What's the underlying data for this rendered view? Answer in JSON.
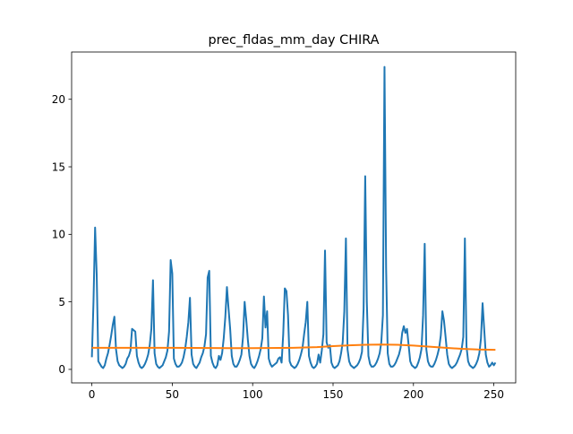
{
  "chart_data": {
    "type": "line",
    "title": "prec_fldas_mm_day CHIRA",
    "xlabel": "",
    "ylabel": "",
    "xlim": [
      -12.6,
      263.6
    ],
    "ylim": [
      -1.0,
      23.5
    ],
    "xticks": [
      0,
      50,
      100,
      150,
      200,
      250
    ],
    "yticks": [
      0,
      5,
      10,
      15,
      20
    ],
    "grid": false,
    "legend": "none",
    "series": [
      {
        "color": "#1f77b4",
        "x": [
          0,
          1,
          2,
          3,
          4,
          5,
          6,
          7,
          8,
          9,
          10,
          11,
          12,
          13,
          14,
          15,
          16,
          17,
          18,
          19,
          20,
          21,
          22,
          23,
          24,
          25,
          26,
          27,
          28,
          29,
          30,
          31,
          32,
          33,
          34,
          35,
          36,
          37,
          38,
          39,
          40,
          41,
          42,
          43,
          44,
          45,
          46,
          47,
          48,
          49,
          50,
          51,
          52,
          53,
          54,
          55,
          56,
          57,
          58,
          59,
          60,
          61,
          62,
          63,
          64,
          65,
          66,
          67,
          68,
          69,
          70,
          71,
          72,
          73,
          74,
          75,
          76,
          77,
          78,
          79,
          80,
          81,
          82,
          83,
          84,
          85,
          86,
          87,
          88,
          89,
          90,
          91,
          92,
          93,
          94,
          95,
          96,
          97,
          98,
          99,
          100,
          101,
          102,
          103,
          104,
          105,
          106,
          107,
          108,
          109,
          110,
          111,
          112,
          113,
          114,
          115,
          116,
          117,
          118,
          119,
          120,
          121,
          122,
          123,
          124,
          125,
          126,
          127,
          128,
          129,
          130,
          131,
          132,
          133,
          134,
          135,
          136,
          137,
          138,
          139,
          140,
          141,
          142,
          143,
          144,
          145,
          146,
          147,
          148,
          149,
          150,
          151,
          152,
          153,
          154,
          155,
          156,
          157,
          158,
          159,
          160,
          161,
          162,
          163,
          164,
          165,
          166,
          167,
          168,
          169,
          170,
          171,
          172,
          173,
          174,
          175,
          176,
          177,
          178,
          179,
          180,
          181,
          182,
          183,
          184,
          185,
          186,
          187,
          188,
          189,
          190,
          191,
          192,
          193,
          194,
          195,
          196,
          197,
          198,
          199,
          200,
          201,
          202,
          203,
          204,
          205,
          206,
          207,
          208,
          209,
          210,
          211,
          212,
          213,
          214,
          215,
          216,
          217,
          218,
          219,
          220,
          221,
          222,
          223,
          224,
          225,
          226,
          227,
          228,
          229,
          230,
          231,
          232,
          233,
          234,
          235,
          236,
          237,
          238,
          239,
          240,
          241,
          242,
          243,
          244,
          245,
          246,
          247,
          248,
          249,
          250,
          251
        ],
        "y": [
          0.9,
          5.0,
          10.5,
          7.0,
          0.6,
          0.4,
          0.2,
          0.1,
          0.3,
          0.8,
          1.2,
          1.8,
          2.5,
          3.3,
          3.9,
          1.5,
          0.6,
          0.3,
          0.2,
          0.1,
          0.2,
          0.4,
          0.8,
          1.0,
          1.4,
          3.0,
          2.9,
          2.8,
          1.0,
          0.5,
          0.2,
          0.1,
          0.2,
          0.4,
          0.7,
          1.1,
          1.8,
          3.0,
          6.6,
          1.2,
          0.4,
          0.2,
          0.1,
          0.2,
          0.3,
          0.6,
          0.9,
          1.4,
          2.8,
          8.1,
          7.1,
          0.8,
          0.4,
          0.2,
          0.2,
          0.3,
          0.5,
          0.9,
          1.5,
          2.4,
          3.5,
          5.3,
          1.1,
          0.4,
          0.2,
          0.1,
          0.3,
          0.5,
          0.9,
          1.2,
          1.7,
          2.6,
          6.8,
          7.3,
          1.0,
          0.5,
          0.2,
          0.1,
          0.3,
          1.0,
          0.7,
          1.2,
          2.3,
          3.9,
          6.1,
          4.5,
          3.0,
          1.0,
          0.4,
          0.2,
          0.2,
          0.4,
          0.7,
          1.1,
          2.4,
          5.0,
          3.7,
          2.2,
          1.0,
          0.4,
          0.2,
          0.1,
          0.3,
          0.6,
          1.0,
          1.5,
          2.3,
          5.4,
          3.1,
          4.3,
          0.8,
          0.4,
          0.2,
          0.3,
          0.4,
          0.5,
          0.8,
          0.9,
          0.5,
          2.6,
          6.0,
          5.8,
          4.0,
          0.6,
          0.3,
          0.2,
          0.1,
          0.2,
          0.4,
          0.7,
          1.1,
          1.6,
          2.6,
          3.5,
          5.0,
          1.0,
          0.5,
          0.2,
          0.1,
          0.2,
          0.4,
          1.1,
          0.5,
          1.4,
          2.6,
          8.8,
          2.0,
          1.6,
          1.8,
          0.5,
          0.2,
          0.1,
          0.2,
          0.3,
          0.6,
          1.2,
          2.0,
          4.3,
          9.7,
          1.5,
          0.6,
          0.3,
          0.2,
          0.1,
          0.2,
          0.3,
          0.5,
          0.8,
          1.3,
          4.5,
          14.3,
          5.0,
          1.0,
          0.4,
          0.2,
          0.2,
          0.3,
          0.5,
          0.8,
          1.2,
          2.0,
          4.0,
          22.4,
          7.5,
          1.2,
          0.4,
          0.2,
          0.2,
          0.3,
          0.5,
          0.8,
          1.1,
          1.6,
          2.7,
          3.2,
          2.7,
          3.0,
          1.8,
          0.6,
          0.3,
          0.2,
          0.1,
          0.2,
          0.5,
          0.9,
          1.5,
          4.0,
          9.3,
          1.5,
          0.6,
          0.3,
          0.2,
          0.2,
          0.4,
          0.7,
          1.1,
          1.6,
          2.5,
          4.3,
          3.6,
          2.4,
          1.1,
          0.4,
          0.2,
          0.1,
          0.2,
          0.3,
          0.5,
          0.8,
          1.1,
          1.5,
          2.4,
          9.7,
          1.7,
          0.6,
          0.3,
          0.2,
          0.1,
          0.2,
          0.4,
          0.7,
          1.2,
          2.3,
          4.9,
          3.0,
          1.1,
          0.5,
          0.2,
          0.3,
          0.5,
          0.3,
          0.5
        ]
      },
      {
        "color": "#ff7f0e",
        "x": [
          0,
          25,
          50,
          75,
          100,
          125,
          140,
          150,
          160,
          170,
          180,
          190,
          200,
          210,
          220,
          230,
          240,
          251
        ],
        "y": [
          1.6,
          1.6,
          1.6,
          1.58,
          1.57,
          1.6,
          1.65,
          1.72,
          1.78,
          1.82,
          1.84,
          1.82,
          1.76,
          1.68,
          1.6,
          1.52,
          1.47,
          1.45
        ]
      }
    ]
  }
}
